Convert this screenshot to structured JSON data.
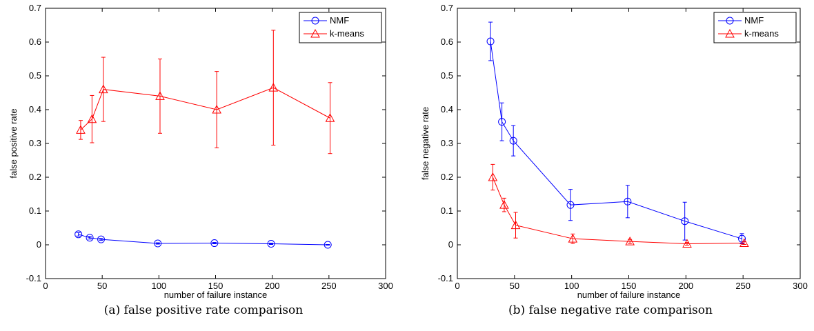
{
  "chart_data": [
    {
      "type": "line",
      "title": "",
      "caption": "(a) false positive rate comparison",
      "xlabel": "number of failure instance",
      "ylabel": "false positive rate",
      "xlim": [
        0,
        300
      ],
      "ylim": [
        -0.1,
        0.7
      ],
      "xticks": [
        "0",
        "50",
        "100",
        "150",
        "200",
        "250",
        "300"
      ],
      "yticks": [
        "-0.1",
        "0",
        "0.1",
        "0.2",
        "0.3",
        "0.4",
        "0.5",
        "0.6",
        "0.7"
      ],
      "grid": false,
      "legend_position": "top-right",
      "series": [
        {
          "name": "NMF",
          "color": "#0000ff",
          "marker": "circle",
          "x": [
            29,
            39,
            49,
            99,
            149,
            199,
            249
          ],
          "y": [
            0.031,
            0.021,
            0.016,
            0.004,
            0.005,
            0.003,
            0.0
          ],
          "err": [
            0.005,
            0.004,
            0.003,
            0.002,
            0.002,
            0.002,
            0.001
          ]
        },
        {
          "name": "k-means",
          "color": "#ff0000",
          "marker": "triangle",
          "x": [
            31,
            41,
            51,
            101,
            151,
            201,
            251
          ],
          "y": [
            0.34,
            0.372,
            0.46,
            0.44,
            0.4,
            0.465,
            0.375
          ],
          "err": [
            0.028,
            0.07,
            0.095,
            0.11,
            0.113,
            0.17,
            0.105
          ]
        }
      ]
    },
    {
      "type": "line",
      "title": "",
      "caption": "(b) false negative rate comparison",
      "xlabel": "number of failure instance",
      "ylabel": "false negative rate",
      "xlim": [
        0,
        300
      ],
      "ylim": [
        -0.1,
        0.7
      ],
      "xticks": [
        "0",
        "50",
        "100",
        "150",
        "200",
        "250",
        "300"
      ],
      "yticks": [
        "-0.1",
        "0",
        "0.1",
        "0.2",
        "0.3",
        "0.4",
        "0.5",
        "0.6",
        "0.7"
      ],
      "grid": false,
      "legend_position": "top-right",
      "series": [
        {
          "name": "NMF",
          "color": "#0000ff",
          "marker": "circle",
          "x": [
            29,
            39,
            49,
            99,
            149,
            199,
            249
          ],
          "y": [
            0.602,
            0.364,
            0.308,
            0.118,
            0.128,
            0.07,
            0.018
          ],
          "err": [
            0.057,
            0.056,
            0.045,
            0.046,
            0.048,
            0.056,
            0.015
          ]
        },
        {
          "name": "k-means",
          "color": "#ff0000",
          "marker": "triangle",
          "x": [
            31,
            41,
            51,
            101,
            151,
            201,
            251
          ],
          "y": [
            0.2,
            0.118,
            0.058,
            0.018,
            0.01,
            0.003,
            0.005
          ],
          "err": [
            0.038,
            0.02,
            0.038,
            0.014,
            0.006,
            0.004,
            0.004
          ]
        }
      ]
    }
  ]
}
